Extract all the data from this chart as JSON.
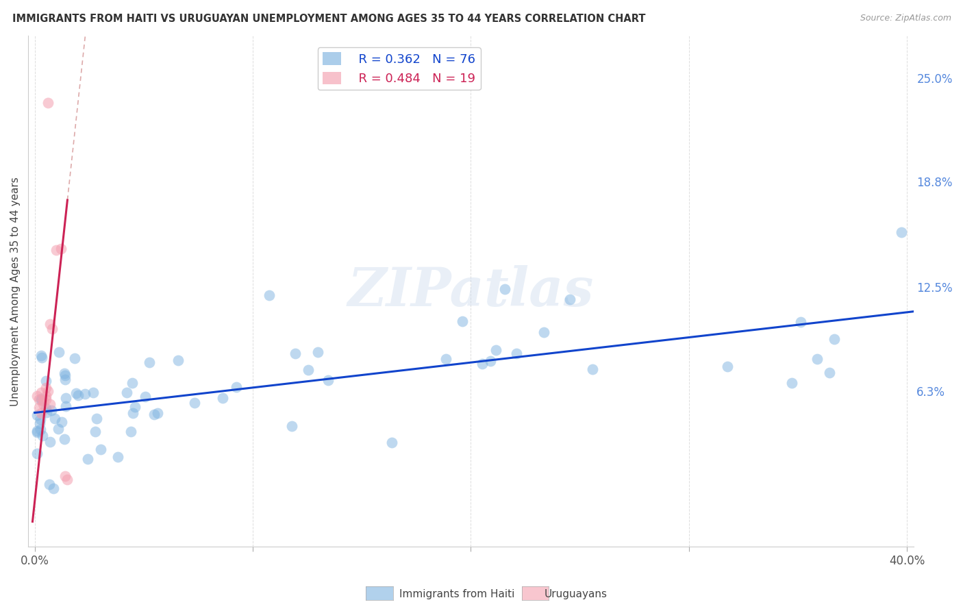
{
  "title": "IMMIGRANTS FROM HAITI VS URUGUAYAN UNEMPLOYMENT AMONG AGES 35 TO 44 YEARS CORRELATION CHART",
  "source": "Source: ZipAtlas.com",
  "ylabel": "Unemployment Among Ages 35 to 44 years",
  "xlim": [
    -0.003,
    0.403
  ],
  "ylim": [
    -0.03,
    0.275
  ],
  "ytick_positions": [
    0.063,
    0.125,
    0.188,
    0.25
  ],
  "ytick_labels": [
    "6.3%",
    "12.5%",
    "18.8%",
    "25.0%"
  ],
  "legend_r1": "R = 0.362",
  "legend_n1": "N = 76",
  "legend_r2": "R = 0.484",
  "legend_n2": "N = 19",
  "blue_color": "#7EB3E0",
  "pink_color": "#F4A0B0",
  "trendline_blue_color": "#1144CC",
  "trendline_pink_color": "#CC2255",
  "trendline_pink_dash_color": "#DDAAAA",
  "watermark": "ZIPatlas",
  "background_color": "#FFFFFF",
  "grid_color": "#DDDDDD",
  "blue_trendline_start_y": 0.05,
  "blue_trendline_end_y": 0.11,
  "pink_slope": 12.0,
  "pink_intercept": -0.003
}
